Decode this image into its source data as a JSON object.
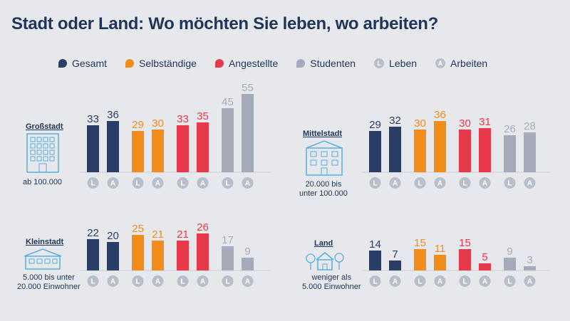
{
  "title": "Stadt oder Land: Wo möchten Sie leben, wo arbeiten?",
  "legend": [
    {
      "label": "Gesamt",
      "color": "#2b3f66"
    },
    {
      "label": "Selbständige",
      "color": "#f28c1a"
    },
    {
      "label": "Angestellte",
      "color": "#e8394a"
    },
    {
      "label": "Studenten",
      "color": "#a4acbb"
    }
  ],
  "legend_markers": [
    {
      "letter": "L",
      "label": "Leben"
    },
    {
      "letter": "A",
      "label": "Arbeiten"
    }
  ],
  "panels": {
    "grossstadt": {
      "title": "Großstadt",
      "caption": "ab 100.000"
    },
    "mittelstadt": {
      "title": "Mittelstadt",
      "caption_1": "20.000 bis",
      "caption_2": "unter 100.000"
    },
    "kleinstadt": {
      "title": "Kleinstadt",
      "caption_1": "5.000 bis unter",
      "caption_2": "20.000 Einwohner"
    },
    "land": {
      "title": "Land",
      "caption_1": "weniger als",
      "caption_2": "5.000 Einwohner"
    }
  },
  "chart_data": {
    "type": "bar",
    "title": "Stadt oder Land: Wo möchten Sie leben, wo arbeiten?",
    "groups": [
      "Gesamt",
      "Selbständige",
      "Angestellte",
      "Studenten"
    ],
    "categories": [
      "L",
      "A"
    ],
    "colors": {
      "Gesamt": "#2b3f66",
      "Selbständige": "#f28c1a",
      "Angestellte": "#e8394a",
      "Studenten": "#a4acbb"
    },
    "panels": [
      {
        "name": "Großstadt",
        "values": {
          "Gesamt": [
            33,
            36
          ],
          "Selbständige": [
            29,
            30
          ],
          "Angestellte": [
            33,
            35
          ],
          "Studenten": [
            45,
            55
          ]
        }
      },
      {
        "name": "Mittelstadt",
        "values": {
          "Gesamt": [
            29,
            32
          ],
          "Selbständige": [
            30,
            36
          ],
          "Angestellte": [
            30,
            31
          ],
          "Studenten": [
            26,
            28
          ]
        }
      },
      {
        "name": "Kleinstadt",
        "values": {
          "Gesamt": [
            22,
            20
          ],
          "Selbständige": [
            25,
            21
          ],
          "Angestellte": [
            21,
            26
          ],
          "Studenten": [
            17,
            9
          ]
        }
      },
      {
        "name": "Land",
        "values": {
          "Gesamt": [
            14,
            7
          ],
          "Selbständige": [
            15,
            11
          ],
          "Angestellte": [
            15,
            5
          ],
          "Studenten": [
            9,
            3
          ]
        }
      }
    ]
  }
}
